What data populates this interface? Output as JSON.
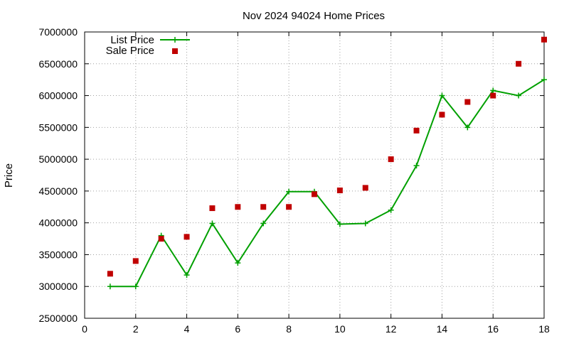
{
  "chart_data": {
    "type": "line",
    "title": "Nov 2024 94024 Home Prices",
    "xlabel": "",
    "ylabel": "Price",
    "xlim": [
      0,
      18
    ],
    "ylim": [
      2500000,
      7000000
    ],
    "x_ticks": [
      0,
      2,
      4,
      6,
      8,
      10,
      12,
      14,
      16,
      18
    ],
    "y_ticks": [
      2500000,
      3000000,
      3500000,
      4000000,
      4500000,
      5000000,
      5500000,
      6000000,
      6500000,
      7000000
    ],
    "grid": true,
    "legend_position": "top-left",
    "series": [
      {
        "name": "List Price",
        "style": "line-with-plus-markers",
        "color": "#00a000",
        "x": [
          1,
          2,
          3,
          4,
          5,
          6,
          7,
          8,
          9,
          10,
          11,
          12,
          13,
          14,
          15,
          16,
          17,
          18
        ],
        "values": [
          3000000,
          3000000,
          3800000,
          3180000,
          3990000,
          3370000,
          3990000,
          4490000,
          4490000,
          3980000,
          3990000,
          4200000,
          4900000,
          6000000,
          5500000,
          6080000,
          6000000,
          6250000
        ]
      },
      {
        "name": "Sale Price",
        "style": "square-markers",
        "color": "#c00000",
        "x": [
          1,
          2,
          3,
          4,
          5,
          6,
          7,
          8,
          9,
          10,
          11,
          12,
          13,
          14,
          15,
          16,
          17,
          18
        ],
        "values": [
          3200000,
          3400000,
          3750000,
          3780000,
          4230000,
          4250000,
          4250000,
          4250000,
          4450000,
          4510000,
          4550000,
          5000000,
          5450000,
          5700000,
          5900000,
          6000000,
          6500000,
          6880000
        ]
      }
    ]
  }
}
